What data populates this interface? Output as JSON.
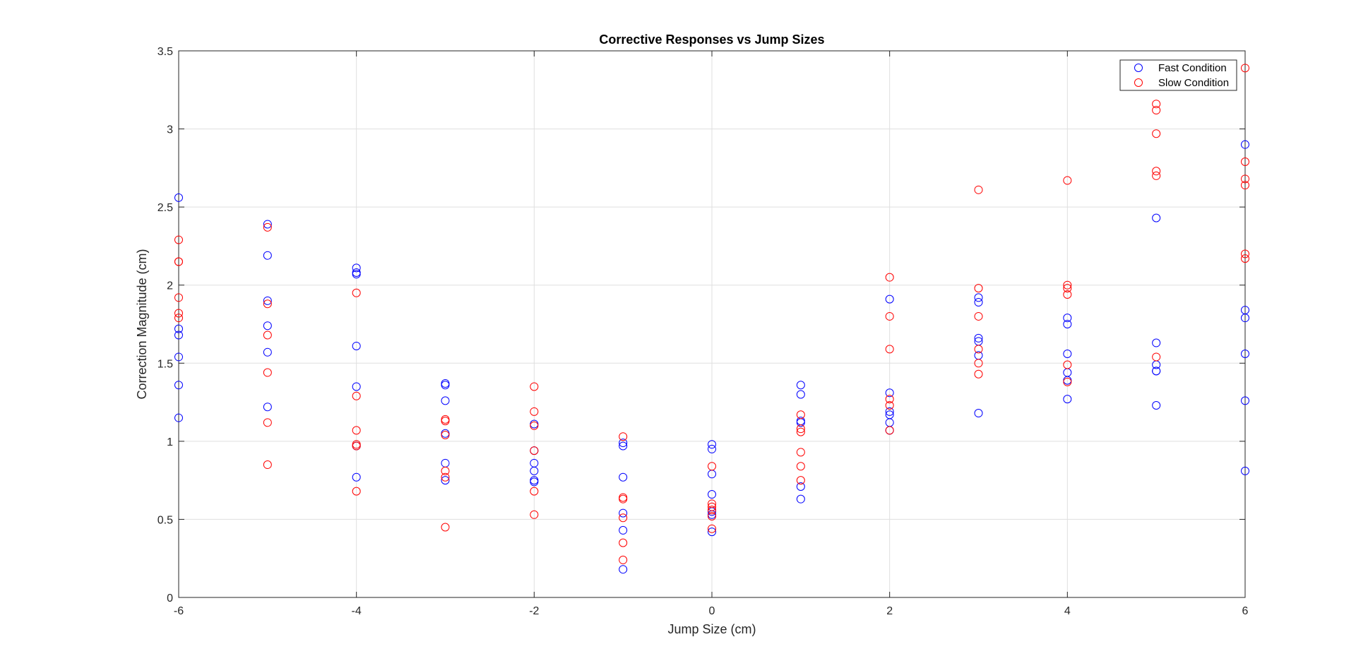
{
  "chart_data": {
    "type": "scatter",
    "title": "Corrective Responses vs Jump Sizes",
    "xlabel": "Jump Size (cm)",
    "ylabel": "Correction Magnitude (cm)",
    "xlim": [
      -6,
      6
    ],
    "ylim": [
      0,
      3.5
    ],
    "xticks": [
      "-6",
      "-4",
      "-2",
      "0",
      "2",
      "4",
      "6"
    ],
    "xtick_values": [
      -6,
      -4,
      -2,
      0,
      2,
      4,
      6
    ],
    "yticks": [
      "0",
      "0.5",
      "1",
      "1.5",
      "2",
      "2.5",
      "3",
      "3.5"
    ],
    "ytick_values": [
      0,
      0.5,
      1,
      1.5,
      2,
      2.5,
      3,
      3.5
    ],
    "grid": true,
    "legend_position": "top-right",
    "series": [
      {
        "name": "Fast Condition",
        "color": "#0000ff",
        "marker": "circle-open",
        "points": [
          [
            -6,
            2.56
          ],
          [
            -6,
            1.72
          ],
          [
            -6,
            1.68
          ],
          [
            -6,
            1.54
          ],
          [
            -6,
            1.36
          ],
          [
            -6,
            1.15
          ],
          [
            -5,
            2.39
          ],
          [
            -5,
            2.19
          ],
          [
            -5,
            1.9
          ],
          [
            -5,
            1.74
          ],
          [
            -5,
            1.57
          ],
          [
            -5,
            1.22
          ],
          [
            -4,
            2.11
          ],
          [
            -4,
            2.08
          ],
          [
            -4,
            2.07
          ],
          [
            -4,
            1.61
          ],
          [
            -4,
            1.35
          ],
          [
            -4,
            0.97
          ],
          [
            -4,
            0.77
          ],
          [
            -3,
            1.37
          ],
          [
            -3,
            1.36
          ],
          [
            -3,
            1.26
          ],
          [
            -3,
            1.05
          ],
          [
            -3,
            0.86
          ],
          [
            -3,
            0.75
          ],
          [
            -2,
            1.11
          ],
          [
            -2,
            0.94
          ],
          [
            -2,
            0.86
          ],
          [
            -2,
            0.81
          ],
          [
            -2,
            0.75
          ],
          [
            -2,
            0.74
          ],
          [
            -1,
            0.99
          ],
          [
            -1,
            0.97
          ],
          [
            -1,
            0.77
          ],
          [
            -1,
            0.54
          ],
          [
            -1,
            0.43
          ],
          [
            -1,
            0.18
          ],
          [
            0,
            0.98
          ],
          [
            0,
            0.95
          ],
          [
            0,
            0.79
          ],
          [
            0,
            0.66
          ],
          [
            0,
            0.55
          ],
          [
            0,
            0.53
          ],
          [
            0,
            0.42
          ],
          [
            1,
            1.36
          ],
          [
            1,
            1.3
          ],
          [
            1,
            1.13
          ],
          [
            1,
            1.12
          ],
          [
            1,
            0.71
          ],
          [
            1,
            0.63
          ],
          [
            2,
            1.91
          ],
          [
            2,
            1.31
          ],
          [
            2,
            1.19
          ],
          [
            2,
            1.17
          ],
          [
            2,
            1.12
          ],
          [
            2,
            1.07
          ],
          [
            3,
            1.92
          ],
          [
            3,
            1.89
          ],
          [
            3,
            1.66
          ],
          [
            3,
            1.64
          ],
          [
            3,
            1.55
          ],
          [
            3,
            1.18
          ],
          [
            4,
            1.79
          ],
          [
            4,
            1.75
          ],
          [
            4,
            1.56
          ],
          [
            4,
            1.44
          ],
          [
            4,
            1.39
          ],
          [
            4,
            1.27
          ],
          [
            5,
            2.43
          ],
          [
            5,
            1.63
          ],
          [
            5,
            1.49
          ],
          [
            5,
            1.45
          ],
          [
            5,
            1.45
          ],
          [
            5,
            1.23
          ],
          [
            6,
            2.9
          ],
          [
            6,
            1.84
          ],
          [
            6,
            1.79
          ],
          [
            6,
            1.56
          ],
          [
            6,
            1.26
          ],
          [
            6,
            0.81
          ]
        ]
      },
      {
        "name": "Slow Condition",
        "color": "#ff0000",
        "marker": "circle-open",
        "points": [
          [
            -6,
            2.29
          ],
          [
            -6,
            2.15
          ],
          [
            -6,
            2.15
          ],
          [
            -6,
            1.92
          ],
          [
            -6,
            1.82
          ],
          [
            -6,
            1.79
          ],
          [
            -5,
            2.37
          ],
          [
            -5,
            1.88
          ],
          [
            -5,
            1.68
          ],
          [
            -5,
            1.44
          ],
          [
            -5,
            1.12
          ],
          [
            -5,
            0.85
          ],
          [
            -4,
            1.95
          ],
          [
            -4,
            1.29
          ],
          [
            -4,
            1.07
          ],
          [
            -4,
            0.98
          ],
          [
            -4,
            0.97
          ],
          [
            -4,
            0.68
          ],
          [
            -3,
            1.14
          ],
          [
            -3,
            1.13
          ],
          [
            -3,
            1.04
          ],
          [
            -3,
            0.81
          ],
          [
            -3,
            0.77
          ],
          [
            -3,
            0.45
          ],
          [
            -2,
            1.35
          ],
          [
            -2,
            1.19
          ],
          [
            -2,
            1.1
          ],
          [
            -2,
            0.94
          ],
          [
            -2,
            0.68
          ],
          [
            -2,
            0.53
          ],
          [
            -1,
            1.03
          ],
          [
            -1,
            0.64
          ],
          [
            -1,
            0.63
          ],
          [
            -1,
            0.51
          ],
          [
            -1,
            0.35
          ],
          [
            -1,
            0.24
          ],
          [
            0,
            0.84
          ],
          [
            0,
            0.6
          ],
          [
            0,
            0.58
          ],
          [
            0,
            0.56
          ],
          [
            0,
            0.52
          ],
          [
            0,
            0.44
          ],
          [
            1,
            1.17
          ],
          [
            1,
            1.08
          ],
          [
            1,
            1.06
          ],
          [
            1,
            0.93
          ],
          [
            1,
            0.84
          ],
          [
            1,
            0.75
          ],
          [
            2,
            2.05
          ],
          [
            2,
            1.8
          ],
          [
            2,
            1.59
          ],
          [
            2,
            1.27
          ],
          [
            2,
            1.23
          ],
          [
            2,
            1.07
          ],
          [
            3,
            2.61
          ],
          [
            3,
            1.98
          ],
          [
            3,
            1.8
          ],
          [
            3,
            1.59
          ],
          [
            3,
            1.5
          ],
          [
            3,
            1.43
          ],
          [
            4,
            2.67
          ],
          [
            4,
            2.0
          ],
          [
            4,
            1.98
          ],
          [
            4,
            1.94
          ],
          [
            4,
            1.49
          ],
          [
            4,
            1.38
          ],
          [
            5,
            3.16
          ],
          [
            5,
            3.12
          ],
          [
            5,
            2.97
          ],
          [
            5,
            2.73
          ],
          [
            5,
            2.7
          ],
          [
            5,
            1.54
          ],
          [
            6,
            3.39
          ],
          [
            6,
            2.79
          ],
          [
            6,
            2.68
          ],
          [
            6,
            2.64
          ],
          [
            6,
            2.2
          ],
          [
            6,
            2.17
          ]
        ]
      }
    ]
  }
}
